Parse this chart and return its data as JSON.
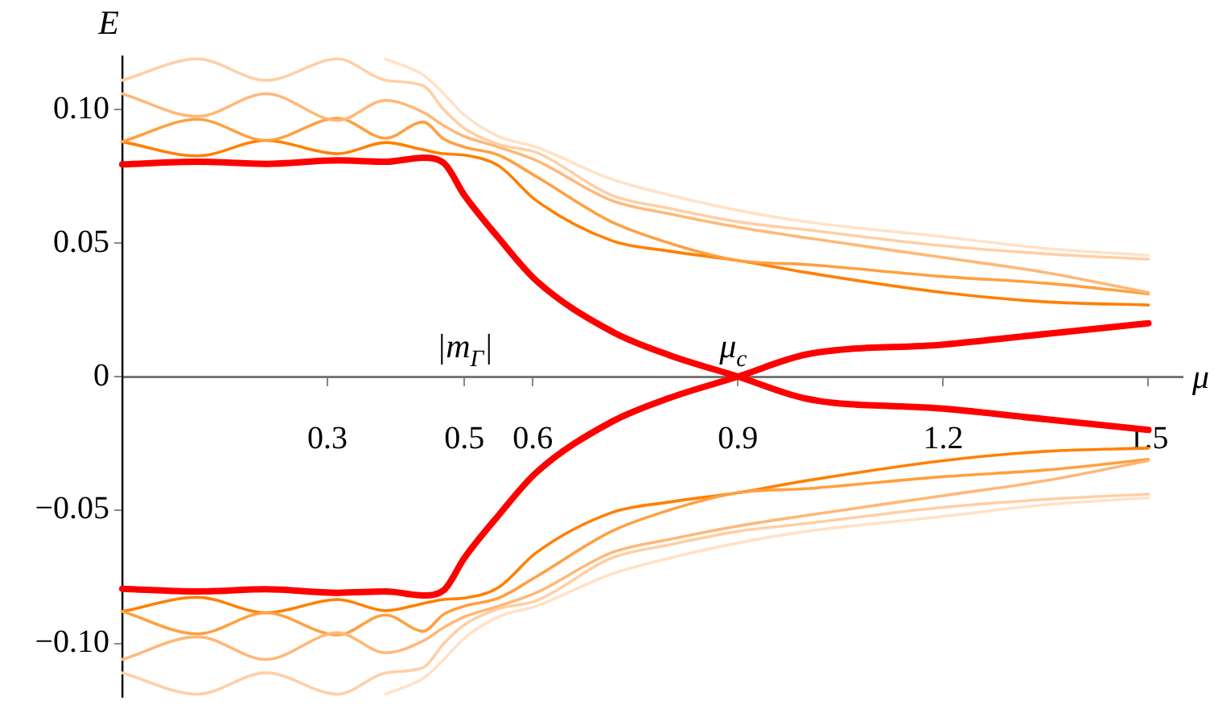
{
  "chart_data": {
    "type": "line",
    "xlabel": "μ",
    "ylabel": "E",
    "x": [
      0,
      0.11,
      0.21,
      0.315,
      0.385,
      0.44,
      0.47,
      0.5,
      0.55,
      0.605,
      0.715,
      0.8,
      0.9,
      1.0,
      1.2,
      1.35,
      1.5
    ],
    "series": [
      {
        "color": "#ffe2c8",
        "values": [
          null,
          null,
          null,
          null,
          0.119,
          0.113,
          0.106,
          0.098,
          0.09,
          0.086,
          0.074,
          0.068,
          0.0623,
          0.058,
          0.0524,
          0.048,
          0.0454
        ]
      },
      {
        "color": "#ffcfa5",
        "values": [
          0.111,
          0.119,
          0.111,
          0.119,
          0.111,
          0.109,
          0.1,
          0.093,
          0.087,
          0.084,
          0.068,
          0.063,
          0.058,
          0.055,
          0.049,
          0.046,
          0.044
        ]
      },
      {
        "color": "#ffb878",
        "values": [
          0.106,
          0.0975,
          0.106,
          0.096,
          0.1035,
          0.099,
          0.094,
          0.09,
          0.086,
          0.081,
          0.066,
          0.061,
          0.056,
          0.052,
          0.0446,
          0.039,
          0.0315
        ]
      },
      {
        "color": "#ffa040",
        "values": [
          0.088,
          0.0964,
          0.0885,
          0.0968,
          0.0893,
          0.0954,
          0.089,
          0.086,
          0.083,
          0.075,
          0.058,
          0.05,
          0.0435,
          0.042,
          0.0375,
          0.035,
          0.031
        ]
      },
      {
        "color": "#ff8000",
        "values": [
          0.088,
          0.0827,
          0.0885,
          0.0835,
          0.0877,
          0.085,
          0.0835,
          0.083,
          0.079,
          0.066,
          0.051,
          0.047,
          0.0435,
          0.039,
          0.0315,
          0.028,
          0.0268
        ]
      },
      {
        "color": "#ffe2c8",
        "values": [
          null,
          null,
          null,
          null,
          -0.119,
          -0.113,
          -0.106,
          -0.098,
          -0.09,
          -0.086,
          -0.074,
          -0.068,
          -0.0623,
          -0.058,
          -0.0524,
          -0.048,
          -0.0454
        ]
      },
      {
        "color": "#ffcfa5",
        "values": [
          -0.111,
          -0.119,
          -0.111,
          -0.119,
          -0.111,
          -0.109,
          -0.1,
          -0.093,
          -0.087,
          -0.084,
          -0.068,
          -0.063,
          -0.058,
          -0.055,
          -0.049,
          -0.046,
          -0.044
        ]
      },
      {
        "color": "#ffb878",
        "values": [
          -0.106,
          -0.0975,
          -0.106,
          -0.096,
          -0.1035,
          -0.099,
          -0.094,
          -0.09,
          -0.086,
          -0.081,
          -0.066,
          -0.061,
          -0.056,
          -0.052,
          -0.0446,
          -0.039,
          -0.0315
        ]
      },
      {
        "color": "#ffa040",
        "values": [
          -0.088,
          -0.0964,
          -0.0885,
          -0.0968,
          -0.0893,
          -0.0954,
          -0.089,
          -0.086,
          -0.083,
          -0.075,
          -0.058,
          -0.05,
          -0.0435,
          -0.042,
          -0.0375,
          -0.035,
          -0.031
        ]
      },
      {
        "color": "#ff8000",
        "values": [
          -0.088,
          -0.0827,
          -0.0885,
          -0.0835,
          -0.0877,
          -0.085,
          -0.0835,
          -0.083,
          -0.079,
          -0.066,
          -0.051,
          -0.047,
          -0.0435,
          -0.039,
          -0.0315,
          -0.028,
          -0.0268
        ]
      },
      {
        "color": "#ff0000",
        "values": [
          0.0795,
          0.0805,
          0.0797,
          0.081,
          0.0805,
          0.082,
          0.08,
          0.068,
          0.052,
          0.036,
          0.017,
          0.008,
          0,
          -0.0083,
          -0.012,
          -0.016,
          -0.02
        ]
      },
      {
        "color": "#ff0000",
        "values": [
          -0.0795,
          -0.0805,
          -0.0797,
          -0.081,
          -0.0805,
          -0.082,
          -0.08,
          -0.068,
          -0.052,
          -0.036,
          -0.017,
          -0.008,
          0,
          0.0083,
          0.012,
          0.016,
          0.02
        ]
      }
    ],
    "xlim": [
      0,
      1.55
    ],
    "ylim": [
      -0.12,
      0.12
    ],
    "xticks": [
      0.3,
      0.5,
      0.6,
      0.9,
      1.2,
      1.5
    ],
    "yticks": [
      {
        "value": -0.1,
        "label": "−0.10"
      },
      {
        "value": -0.05,
        "label": "−0.05"
      },
      0,
      0.05,
      {
        "value": 0.1,
        "label": "0.10"
      }
    ],
    "grid": false,
    "legend": false,
    "marker": "none",
    "line_style": "solid",
    "annotations": [
      "|m$_{Γ}$|",
      {
        "text": "μ$_{c}$",
        "x": 0.9,
        "y": 0
      }
    ]
  }
}
